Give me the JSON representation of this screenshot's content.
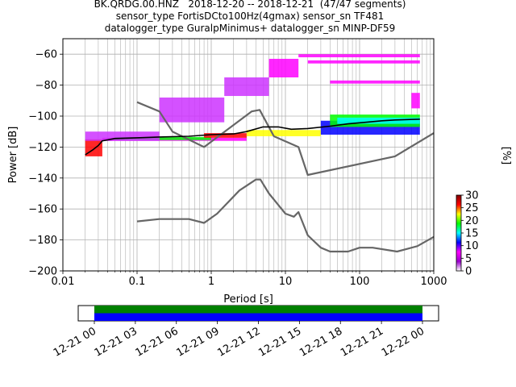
{
  "title_lines": [
    "BK.QRDG.00.HNZ   2018-12-20 -- 2018-12-21  (47/47 segments)",
    "sensor_type FortisDCto100Hz(4gmax) sensor_sn TF481",
    "datalogger_type GuralpMinimus+ datalogger_sn MINP-DF59"
  ],
  "chart_data": [
    {
      "type": "heatmap",
      "xlabel": "Period [s]",
      "ylabel": "Power [dB]",
      "xscale": "log",
      "xlim": [
        0.01,
        1000
      ],
      "ylim": [
        -200,
        -50
      ],
      "xticks": [
        {
          "v": 0.01,
          "label": "0.01"
        },
        {
          "v": 0.1,
          "label": "0.1"
        },
        {
          "v": 1,
          "label": "1"
        },
        {
          "v": 10,
          "label": "10"
        },
        {
          "v": 100,
          "label": "100"
        },
        {
          "v": 1000,
          "label": "1000"
        }
      ],
      "yticks": [
        -60,
        -80,
        -100,
        -120,
        -140,
        -160,
        -180,
        -200
      ],
      "grid": true,
      "colorbar": {
        "label": "[%]",
        "min": 0,
        "max": 30,
        "ticks": [
          0,
          5,
          10,
          15,
          20,
          25,
          30
        ],
        "colors": [
          "#ffffff",
          "#9900cc",
          "#ff00ff",
          "#0000ff",
          "#00ffff",
          "#00ff00",
          "#ffff00",
          "#ff0000",
          "#800000"
        ]
      },
      "series": [
        {
          "color": "#666666",
          "points": [
            [
              0.1,
              -91
            ],
            [
              0.2,
              -97
            ],
            [
              0.3,
              -110
            ],
            [
              0.8,
              -120
            ],
            [
              3.5,
              -97
            ],
            [
              4.5,
              -96
            ],
            [
              7,
              -113
            ],
            [
              15,
              -120
            ],
            [
              20,
              -138
            ],
            [
              300,
              -126
            ],
            [
              1000,
              -111
            ]
          ]
        },
        {
          "color": "#666666",
          "points": [
            [
              0.1,
              -168
            ],
            [
              0.2,
              -166.5
            ],
            [
              0.5,
              -166.5
            ],
            [
              0.8,
              -169
            ],
            [
              1.2,
              -163
            ],
            [
              2.4,
              -148
            ],
            [
              4,
              -141
            ],
            [
              4.6,
              -141
            ],
            [
              6,
              -150
            ],
            [
              10,
              -163
            ],
            [
              13,
              -165
            ],
            [
              15,
              -162
            ],
            [
              20,
              -177
            ],
            [
              30,
              -185
            ],
            [
              40,
              -187.5
            ],
            [
              70,
              -187.5
            ],
            [
              100,
              -185
            ],
            [
              150,
              -185
            ],
            [
              320,
              -187.5
            ],
            [
              600,
              -184
            ],
            [
              1000,
              -178
            ]
          ]
        },
        {
          "color": "#000000",
          "points": [
            [
              0.02,
              -125
            ],
            [
              0.025,
              -122
            ],
            [
              0.03,
              -119
            ],
            [
              0.034,
              -116
            ],
            [
              0.05,
              -114.5
            ],
            [
              0.1,
              -114
            ],
            [
              0.2,
              -113.5
            ],
            [
              0.5,
              -113
            ],
            [
              1,
              -112
            ],
            [
              2,
              -111.5
            ],
            [
              3,
              -110
            ],
            [
              5,
              -107
            ],
            [
              8,
              -107
            ],
            [
              12,
              -108.5
            ],
            [
              20,
              -108
            ],
            [
              40,
              -106.5
            ],
            [
              70,
              -105
            ],
            [
              120,
              -104
            ],
            [
              200,
              -103
            ],
            [
              300,
              -102.5
            ],
            [
              650,
              -102
            ]
          ]
        }
      ],
      "pdf_bands": [
        {
          "x": [
            0.02,
            0.034
          ],
          "y": [
            -126,
            -115
          ],
          "color": "#ff0000"
        },
        {
          "x": [
            0.034,
            3
          ],
          "y": [
            -116,
            -114
          ],
          "color": "#ff00ff"
        },
        {
          "x": [
            0.05,
            1
          ],
          "y": [
            -115.5,
            -113.5
          ],
          "color": "#00ff00"
        },
        {
          "x": [
            0.8,
            3
          ],
          "y": [
            -114,
            -111
          ],
          "color": "#ff0000"
        },
        {
          "x": [
            3,
            30
          ],
          "y": [
            -113,
            -109
          ],
          "color": "#ffff00"
        },
        {
          "x": [
            30,
            650
          ],
          "y": [
            -112,
            -103
          ],
          "color": "#0000ff"
        },
        {
          "x": [
            40,
            650
          ],
          "y": [
            -107,
            -99
          ],
          "color": "#00ff00"
        },
        {
          "x": [
            50,
            650
          ],
          "y": [
            -105,
            -101
          ],
          "color": "#00ffff"
        },
        {
          "x": [
            0.02,
            0.2
          ],
          "y": [
            -116,
            -110
          ],
          "color": "#cc33ff"
        },
        {
          "x": [
            0.2,
            1.5
          ],
          "y": [
            -104,
            -88
          ],
          "color": "#cc33ff"
        },
        {
          "x": [
            1.5,
            6
          ],
          "y": [
            -87,
            -75
          ],
          "color": "#cc33ff"
        },
        {
          "x": [
            6,
            15
          ],
          "y": [
            -75,
            -63
          ],
          "color": "#ff00ff"
        },
        {
          "x": [
            15,
            650
          ],
          "y": [
            -62,
            -60
          ],
          "color": "#ff00ff"
        },
        {
          "x": [
            20,
            650
          ],
          "y": [
            -66,
            -64
          ],
          "color": "#ff00ff"
        },
        {
          "x": [
            40,
            650
          ],
          "y": [
            -79,
            -77
          ],
          "color": "#ff00ff"
        },
        {
          "x": [
            500,
            650
          ],
          "y": [
            -95,
            -85
          ],
          "color": "#ff00ff"
        }
      ]
    },
    {
      "type": "timeline",
      "xlim": [
        "12-21 00",
        "12-22 00"
      ],
      "tick_labels": [
        "12-21 00",
        "12-21 03",
        "12-21 06",
        "12-21 09",
        "12-21 12",
        "12-21 15",
        "12-21 18",
        "12-21 21",
        "12-22 00"
      ],
      "bars": [
        {
          "color": "#008000",
          "start_hour": 0,
          "end_hour": 24
        },
        {
          "color": "#0000ff",
          "start_hour": 0,
          "end_hour": 24
        }
      ]
    }
  ]
}
